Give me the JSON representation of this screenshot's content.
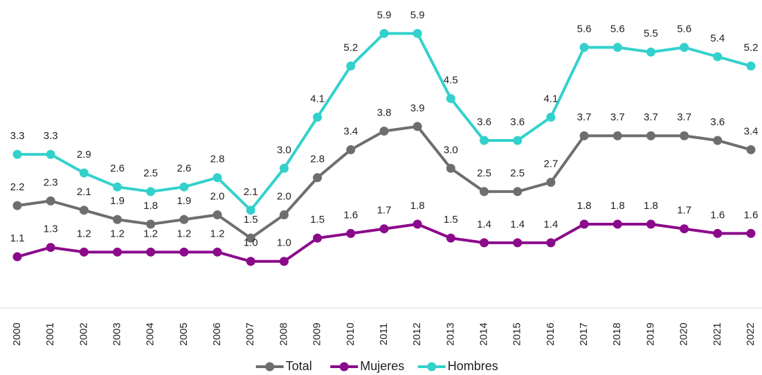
{
  "chart_data": {
    "type": "line",
    "categories": [
      "2000",
      "2001",
      "2002",
      "2003",
      "2004",
      "2005",
      "2006",
      "2007",
      "2008",
      "2009",
      "2010",
      "2011",
      "2012",
      "2013",
      "2014",
      "2015",
      "2016",
      "2017",
      "2018",
      "2019",
      "2020",
      "2021",
      "2022"
    ],
    "ylim": [
      0,
      6.5
    ],
    "legend": "bottom",
    "series": [
      {
        "name": "Total",
        "color": "#6e6e6e",
        "values": [
          2.2,
          2.3,
          2.1,
          1.9,
          1.8,
          1.9,
          2.0,
          1.5,
          2.0,
          2.8,
          3.4,
          3.8,
          3.9,
          3.0,
          2.5,
          2.5,
          2.7,
          3.7,
          3.7,
          3.7,
          3.7,
          3.6,
          3.4
        ],
        "value_labels": [
          "2.2",
          "2.3",
          "2.1",
          "1.9",
          "1.8",
          "1.9",
          "2.0",
          "1.5",
          "2.0",
          "2.8",
          "3.4",
          "3.8",
          "3.9",
          "3.0",
          "2.5",
          "2.5",
          "2.7",
          "3.7",
          "3.7",
          "3.7",
          "3.7",
          "3.6",
          "3.4"
        ]
      },
      {
        "name": "Mujeres",
        "color": "#8b0a8b",
        "values": [
          1.1,
          1.3,
          1.2,
          1.2,
          1.2,
          1.2,
          1.2,
          1.0,
          1.0,
          1.5,
          1.6,
          1.7,
          1.8,
          1.5,
          1.4,
          1.4,
          1.4,
          1.8,
          1.8,
          1.8,
          1.7,
          1.6,
          1.6
        ],
        "value_labels": [
          "1.1",
          "1.3",
          "1.2",
          "1.2",
          "1.2",
          "1.2",
          "1.2",
          "1.0",
          "1.0",
          "1.5",
          "1.6",
          "1.7",
          "1.8",
          "1.5",
          "1.4",
          "1.4",
          "1.4",
          "1.8",
          "1.8",
          "1.8",
          "1.7",
          "1.6",
          "1.6"
        ]
      },
      {
        "name": "Hombres",
        "color": "#33d1cc",
        "values": [
          3.3,
          3.3,
          2.9,
          2.6,
          2.5,
          2.6,
          2.8,
          2.1,
          3.0,
          4.1,
          5.2,
          5.9,
          5.9,
          4.5,
          3.6,
          3.6,
          4.1,
          5.6,
          5.6,
          5.5,
          5.6,
          5.4,
          5.2
        ],
        "value_labels": [
          "3.3",
          "3.3",
          "2.9",
          "2.6",
          "2.5",
          "2.6",
          "2.8",
          "2.1",
          "3.0",
          "4.1",
          "5.2",
          "5.9",
          "5.9",
          "4.5",
          "3.6",
          "3.6",
          "4.1",
          "5.6",
          "5.6",
          "5.5",
          "5.6",
          "5.4",
          "5.2"
        ]
      }
    ]
  }
}
